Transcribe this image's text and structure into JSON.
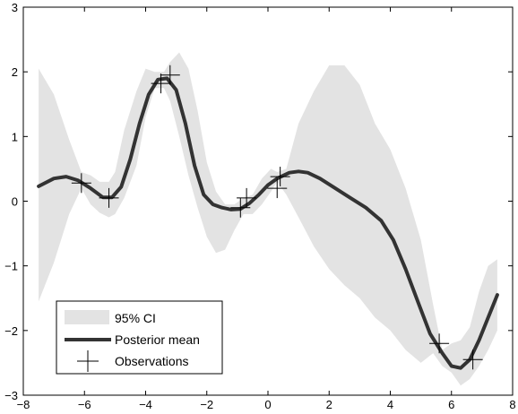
{
  "chart_data": {
    "type": "line",
    "title": "",
    "xlabel": "",
    "ylabel": "",
    "xlim": [
      -8,
      8
    ],
    "ylim": [
      -3,
      3
    ],
    "xticks": [
      -8,
      -6,
      -4,
      -2,
      0,
      2,
      4,
      6,
      8
    ],
    "yticks": [
      -3,
      -2,
      -1,
      0,
      1,
      2,
      3
    ],
    "xtick_labels": [
      "−8",
      "−6",
      "−4",
      "−2",
      "0",
      "2",
      "4",
      "6",
      "8"
    ],
    "ytick_labels": [
      "−3",
      "−2",
      "−1",
      "0",
      "1",
      "2",
      "3"
    ],
    "grid": false,
    "legend_position": "bottom-left",
    "colors": {
      "band": "#e3e3e3",
      "mean": "#333333",
      "marker": "#000000",
      "axes": "#000000"
    },
    "series": [
      {
        "name": "95% CI",
        "kind": "band",
        "x": [
          -7.5,
          -7.0,
          -6.5,
          -6.1,
          -5.8,
          -5.5,
          -5.2,
          -5.0,
          -4.7,
          -4.3,
          -4.0,
          -3.7,
          -3.4,
          -3.2,
          -2.9,
          -2.6,
          -2.3,
          -2.0,
          -1.7,
          -1.4,
          -1.1,
          -0.8,
          -0.5,
          -0.2,
          0.1,
          0.3,
          0.6,
          1.0,
          1.5,
          2.0,
          2.5,
          3.0,
          3.5,
          4.0,
          4.5,
          5.0,
          5.4,
          5.7,
          6.0,
          6.3,
          6.6,
          6.9,
          7.2,
          7.5
        ],
        "lower": [
          -1.55,
          -0.95,
          -0.2,
          0.2,
          -0.05,
          -0.18,
          -0.25,
          -0.2,
          0.05,
          0.55,
          1.3,
          1.75,
          1.75,
          1.55,
          1.0,
          0.4,
          -0.1,
          -0.55,
          -0.8,
          -0.75,
          -0.45,
          -0.2,
          -0.2,
          -0.05,
          0.15,
          0.3,
          0.1,
          -0.25,
          -0.7,
          -1.05,
          -1.3,
          -1.5,
          -1.8,
          -2.0,
          -2.3,
          -2.5,
          -2.35,
          -2.55,
          -2.65,
          -2.85,
          -2.75,
          -2.55,
          -2.3,
          -2.0
        ],
        "upper": [
          2.05,
          1.65,
          0.95,
          0.45,
          0.4,
          0.3,
          0.3,
          0.45,
          1.1,
          1.7,
          2.05,
          2.0,
          2.0,
          2.15,
          2.3,
          2.05,
          1.4,
          0.6,
          0.15,
          -0.05,
          -0.05,
          0.05,
          0.1,
          0.35,
          0.5,
          0.45,
          0.5,
          1.2,
          1.7,
          2.1,
          2.1,
          1.8,
          1.2,
          0.8,
          0.2,
          -0.6,
          -1.6,
          -2.3,
          -2.2,
          -2.15,
          -1.95,
          -1.4,
          -1.0,
          -0.9
        ]
      },
      {
        "name": "Posterior mean",
        "kind": "line",
        "x": [
          -7.5,
          -7.0,
          -6.6,
          -6.2,
          -5.8,
          -5.4,
          -5.1,
          -4.8,
          -4.5,
          -4.2,
          -3.9,
          -3.6,
          -3.3,
          -3.0,
          -2.7,
          -2.4,
          -2.1,
          -1.8,
          -1.5,
          -1.2,
          -0.9,
          -0.6,
          -0.3,
          0.0,
          0.3,
          0.7,
          1.0,
          1.3,
          1.7,
          2.2,
          2.7,
          3.2,
          3.7,
          4.1,
          4.5,
          4.9,
          5.3,
          5.7,
          6.0,
          6.3,
          6.6,
          6.9,
          7.2,
          7.5
        ],
        "y": [
          0.23,
          0.35,
          0.38,
          0.32,
          0.2,
          0.06,
          0.06,
          0.22,
          0.65,
          1.2,
          1.65,
          1.88,
          1.9,
          1.72,
          1.2,
          0.55,
          0.1,
          -0.05,
          -0.1,
          -0.13,
          -0.12,
          -0.03,
          0.1,
          0.25,
          0.35,
          0.44,
          0.46,
          0.44,
          0.35,
          0.2,
          0.05,
          -0.1,
          -0.3,
          -0.6,
          -1.05,
          -1.55,
          -2.05,
          -2.35,
          -2.55,
          -2.58,
          -2.45,
          -2.15,
          -1.8,
          -1.45
        ]
      },
      {
        "name": "Observations",
        "kind": "markers",
        "x": [
          -6.1,
          -5.2,
          -3.5,
          -3.2,
          -0.9,
          -0.7,
          0.3,
          0.4,
          5.6,
          6.7
        ],
        "y": [
          0.28,
          0.05,
          1.82,
          1.95,
          -0.1,
          0.05,
          0.2,
          0.38,
          -2.2,
          -2.45
        ]
      }
    ]
  }
}
